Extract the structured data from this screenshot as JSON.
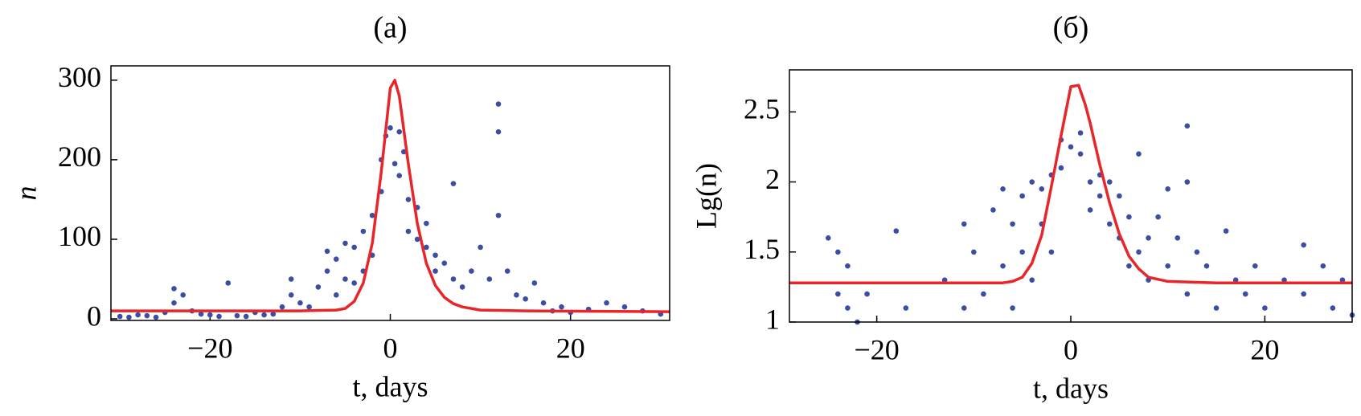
{
  "chart_data": [
    {
      "type": "scatter",
      "title": "(a)",
      "x_label": "t, days",
      "y_label": "n",
      "xlim": [
        -31,
        31
      ],
      "ylim": [
        -2,
        318
      ],
      "xticks": [
        {
          "value": -20,
          "label": "−20"
        },
        0,
        20
      ],
      "yticks": [
        0,
        100,
        200,
        300
      ],
      "series": [
        {
          "type": "scatter",
          "color": "#3b4ea3",
          "x": [
            -30,
            -29,
            -28,
            -27,
            -26,
            -25,
            -24,
            -24,
            -23,
            -22,
            -21,
            -20,
            -19,
            -18,
            -17,
            -16,
            -15,
            -14,
            -13,
            -12,
            -11,
            -11,
            -10,
            -9,
            -8,
            -7,
            -7,
            -6,
            -6,
            -5,
            -5,
            -4,
            -4,
            -3,
            -3,
            -2,
            -2,
            -1,
            -1,
            -0.5,
            0,
            0.5,
            1,
            1,
            1.5,
            2,
            2,
            3,
            3,
            4,
            4,
            5,
            5,
            6,
            7,
            7,
            8,
            9,
            10,
            11,
            12,
            12,
            12,
            13,
            14,
            15,
            16,
            17,
            18,
            19,
            20,
            22,
            24,
            26,
            28,
            30
          ],
          "values": [
            3,
            2,
            5,
            4,
            2,
            8,
            38,
            20,
            30,
            10,
            6,
            5,
            3,
            45,
            4,
            3,
            8,
            5,
            6,
            15,
            50,
            30,
            20,
            15,
            40,
            85,
            60,
            30,
            75,
            50,
            95,
            45,
            90,
            60,
            110,
            80,
            130,
            160,
            200,
            230,
            240,
            195,
            235,
            180,
            210,
            150,
            110,
            100,
            140,
            90,
            120,
            80,
            60,
            70,
            50,
            170,
            40,
            60,
            90,
            50,
            130,
            235,
            270,
            60,
            30,
            25,
            45,
            20,
            10,
            15,
            8,
            12,
            20,
            15,
            10,
            6
          ]
        },
        {
          "type": "line",
          "color": "#e8262a",
          "x": [
            -31,
            -10,
            -6,
            -5,
            -4,
            -3,
            -2,
            -1,
            0,
            0.5,
            1,
            2,
            3,
            4,
            5,
            6,
            7,
            8,
            10,
            15,
            31
          ],
          "values": [
            10,
            10,
            11,
            13,
            22,
            45,
            95,
            185,
            290,
            300,
            280,
            195,
            120,
            70,
            42,
            27,
            19,
            15,
            11,
            10,
            9
          ]
        }
      ]
    },
    {
      "type": "scatter",
      "title": "(б)",
      "x_label": "t, days",
      "y_label": "Lg(n)",
      "xlim": [
        -29,
        29
      ],
      "ylim": [
        1,
        2.8
      ],
      "xticks": [
        {
          "value": -20,
          "label": "−20"
        },
        0,
        20
      ],
      "yticks": [
        1,
        1.5,
        2,
        2.5
      ],
      "series": [
        {
          "type": "scatter",
          "color": "#3b4ea3",
          "x": [
            -25,
            -24,
            -24,
            -23,
            -23,
            -22,
            -21,
            -18,
            -17,
            -13,
            -11,
            -11,
            -10,
            -9,
            -8,
            -7,
            -7,
            -6,
            -6,
            -5,
            -5,
            -4,
            -4,
            -3,
            -3,
            -2,
            -2,
            -1,
            -1,
            0,
            1,
            1,
            2,
            2,
            3,
            3,
            4,
            4,
            5,
            5,
            6,
            6,
            7,
            7,
            8,
            8,
            9,
            10,
            10,
            11,
            12,
            12,
            12,
            13,
            14,
            15,
            16,
            17,
            18,
            19,
            20,
            22,
            24,
            24,
            26,
            27,
            28,
            29
          ],
          "values": [
            1.6,
            1.2,
            1.5,
            1.1,
            1.4,
            1.0,
            1.2,
            1.65,
            1.1,
            1.3,
            1.7,
            1.1,
            1.5,
            1.2,
            1.8,
            1.95,
            1.4,
            1.1,
            1.7,
            1.5,
            1.9,
            1.3,
            2.0,
            1.7,
            1.95,
            1.5,
            2.05,
            2.1,
            2.3,
            2.25,
            2.35,
            2.2,
            2.0,
            1.8,
            2.05,
            1.9,
            1.7,
            2.0,
            1.9,
            1.6,
            1.75,
            1.4,
            2.2,
            1.5,
            1.6,
            1.3,
            1.75,
            1.95,
            1.4,
            1.6,
            2.4,
            2.0,
            1.2,
            1.5,
            1.4,
            1.1,
            1.65,
            1.3,
            1.2,
            1.4,
            1.1,
            1.3,
            1.55,
            1.2,
            1.4,
            1.1,
            1.3,
            1.05
          ]
        },
        {
          "type": "line",
          "color": "#e8262a",
          "x": [
            -29,
            -7,
            -6,
            -5,
            -4,
            -3,
            -2,
            -1,
            0,
            0.8,
            1.5,
            2,
            3,
            4,
            5,
            6,
            7,
            8,
            10,
            15,
            29
          ],
          "values": [
            1.28,
            1.28,
            1.29,
            1.32,
            1.42,
            1.62,
            1.97,
            2.33,
            2.68,
            2.69,
            2.55,
            2.42,
            2.12,
            1.85,
            1.63,
            1.47,
            1.38,
            1.32,
            1.29,
            1.28,
            1.28
          ]
        }
      ]
    }
  ]
}
